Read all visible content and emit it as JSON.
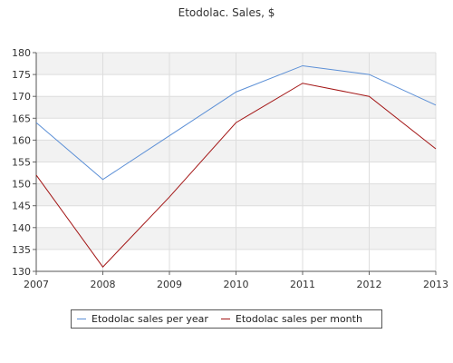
{
  "chart_data": {
    "type": "line",
    "title": "Etodolac. Sales, $",
    "xlabel": "",
    "ylabel": "",
    "categories": [
      "2007",
      "2008",
      "2009",
      "2010",
      "2011",
      "2012",
      "2013"
    ],
    "ylim": [
      130,
      180
    ],
    "yticks": [
      130,
      135,
      140,
      145,
      150,
      155,
      160,
      165,
      170,
      175,
      180
    ],
    "series": [
      {
        "name": "Etodolac sales per year",
        "color": "#5b8fd6",
        "values": [
          164,
          151,
          161,
          171,
          177,
          175,
          168
        ]
      },
      {
        "name": "Etodolac sales per month",
        "color": "#a31515",
        "values": [
          152,
          131,
          147,
          164,
          173,
          170,
          158
        ]
      }
    ],
    "grid": true,
    "legend_position": "bottom"
  }
}
